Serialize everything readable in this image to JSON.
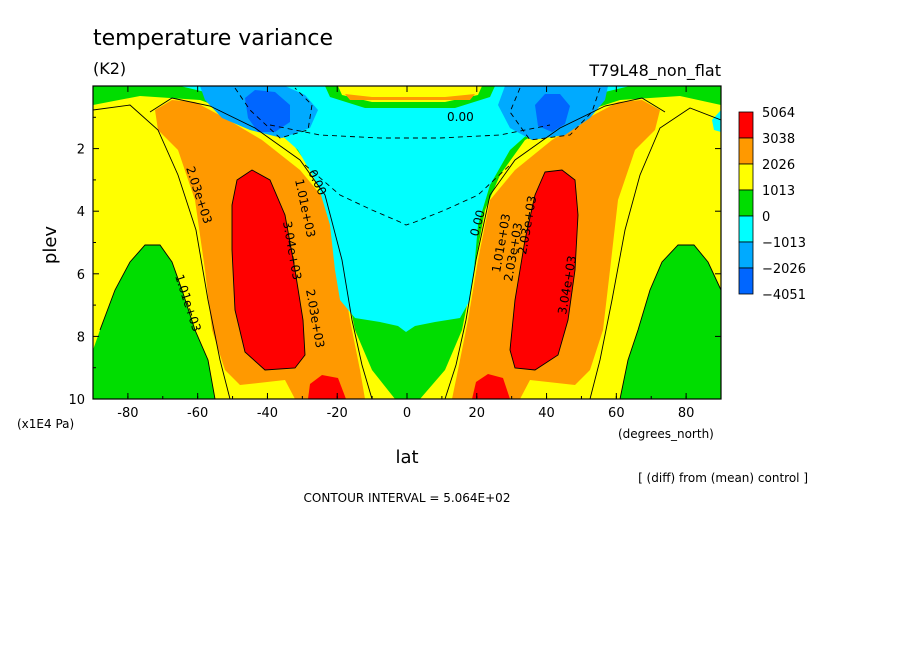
{
  "chart_data": {
    "type": "heatmap",
    "subtype": "filled-contour",
    "title": "temperature variance",
    "units_label": "(K2)",
    "run_label": "T79L48_non_flat",
    "xlabel": "lat",
    "x_units": "(degrees_north)",
    "ylabel": "plev",
    "y_units": "(x1E4 Pa)",
    "xlim": [
      -90,
      90
    ],
    "ylim": [
      10,
      0
    ],
    "x_ticks": [
      -80,
      -60,
      -40,
      -20,
      0,
      20,
      40,
      60,
      80
    ],
    "y_ticks": [
      2,
      4,
      6,
      8,
      10
    ],
    "colorbar": {
      "levels": [
        "5064",
        "3038",
        "2026",
        "1013",
        "0",
        "−1013",
        "−2026",
        "−4051"
      ],
      "colors": [
        "#ff0000",
        "#ff9900",
        "#ffff00",
        "#00dd00",
        "#00ffff",
        "#00aaff",
        "#0066ff"
      ]
    },
    "contour_labels": [
      "0.00",
      "0.00",
      "0.00",
      "1.01e+03",
      "1.01e+03",
      "1.01e+03",
      "2.03e+03",
      "2.03e+03",
      "2.03e+03",
      "2.03e+03",
      "3.04e+03",
      "3.04e+03"
    ],
    "note": "[ (diff) from (mean) control ]",
    "contour_interval": "CONTOUR INTERVAL = 5.064E+02"
  }
}
